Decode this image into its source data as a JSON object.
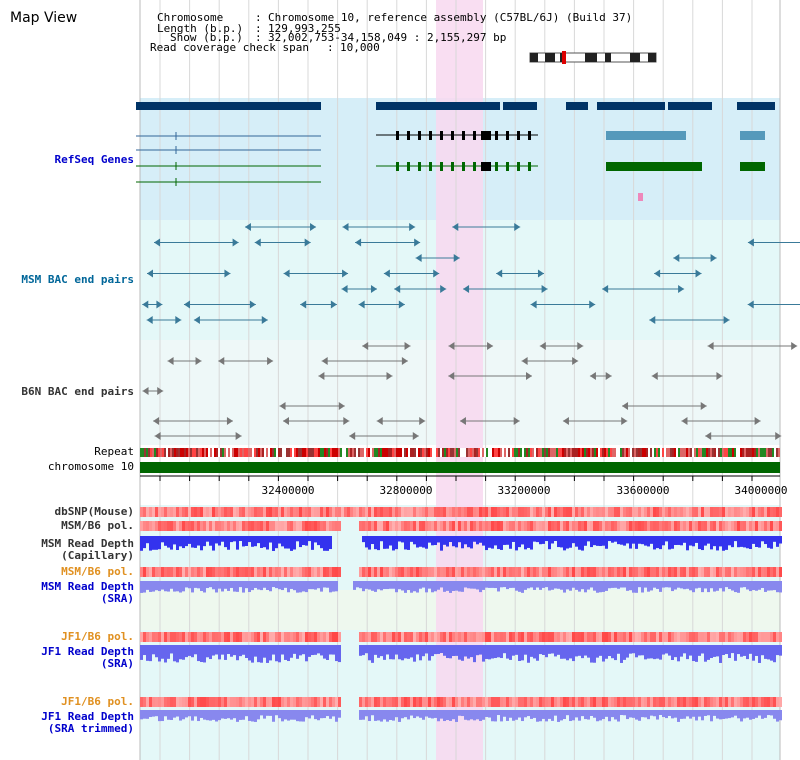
{
  "view": {
    "title": "Map View"
  },
  "info": {
    "chromosome_label": "Chromosome",
    "chromosome_value": "Chromosome 10, reference assembly (C57BL/6J) (Build 37)",
    "length_label": "Length (b.p.)",
    "length_value": "129,993,255",
    "show_label": "Show (b.p.)",
    "show_value": "32,002,753-34,158,049 : 2,155,297 bp",
    "span_label": "Read coverage check span",
    "span_value": "10,000"
  },
  "tracks": {
    "refseq": "RefSeq Genes",
    "msm_bac": "MSM BAC end pairs",
    "b6n_bac": "B6N BAC end pairs",
    "repeat": "Repeat",
    "chromosome": "chromosome 10",
    "dbsnp": "dbSNP(Mouse)",
    "msm_pol": "MSM/B6 pol.",
    "msm_depth_cap_1": "MSM Read Depth",
    "msm_depth_cap_2": "(Capillary)",
    "msm_pol_2": "MSM/B6 pol.",
    "msm_depth_sra_1": "MSM Read Depth",
    "msm_depth_sra_2": "(SRA)",
    "jf1_pol": "JF1/B6 pol.",
    "jf1_depth_sra_1": "JF1 Read Depth",
    "jf1_depth_sra_2": "(SRA)",
    "jf1_pol_2": "JF1/B6 pol.",
    "jf1_depth_trim_1": "JF1 Read Depth",
    "jf1_depth_trim_2": "(SRA trimmed)"
  },
  "axis_ticks": [
    "32400000",
    "32800000",
    "33200000",
    "33600000",
    "34000000"
  ],
  "colors": {
    "refseq_bg": "#d6eef8",
    "bac_bg": "#e4f8f8",
    "highlight": "#f8d8f0",
    "gene_dark": "#003366",
    "gene_green": "#006600",
    "chrom_green": "#006600",
    "depth_blue": "#3333ee",
    "depth_light": "#8888ee"
  }
}
